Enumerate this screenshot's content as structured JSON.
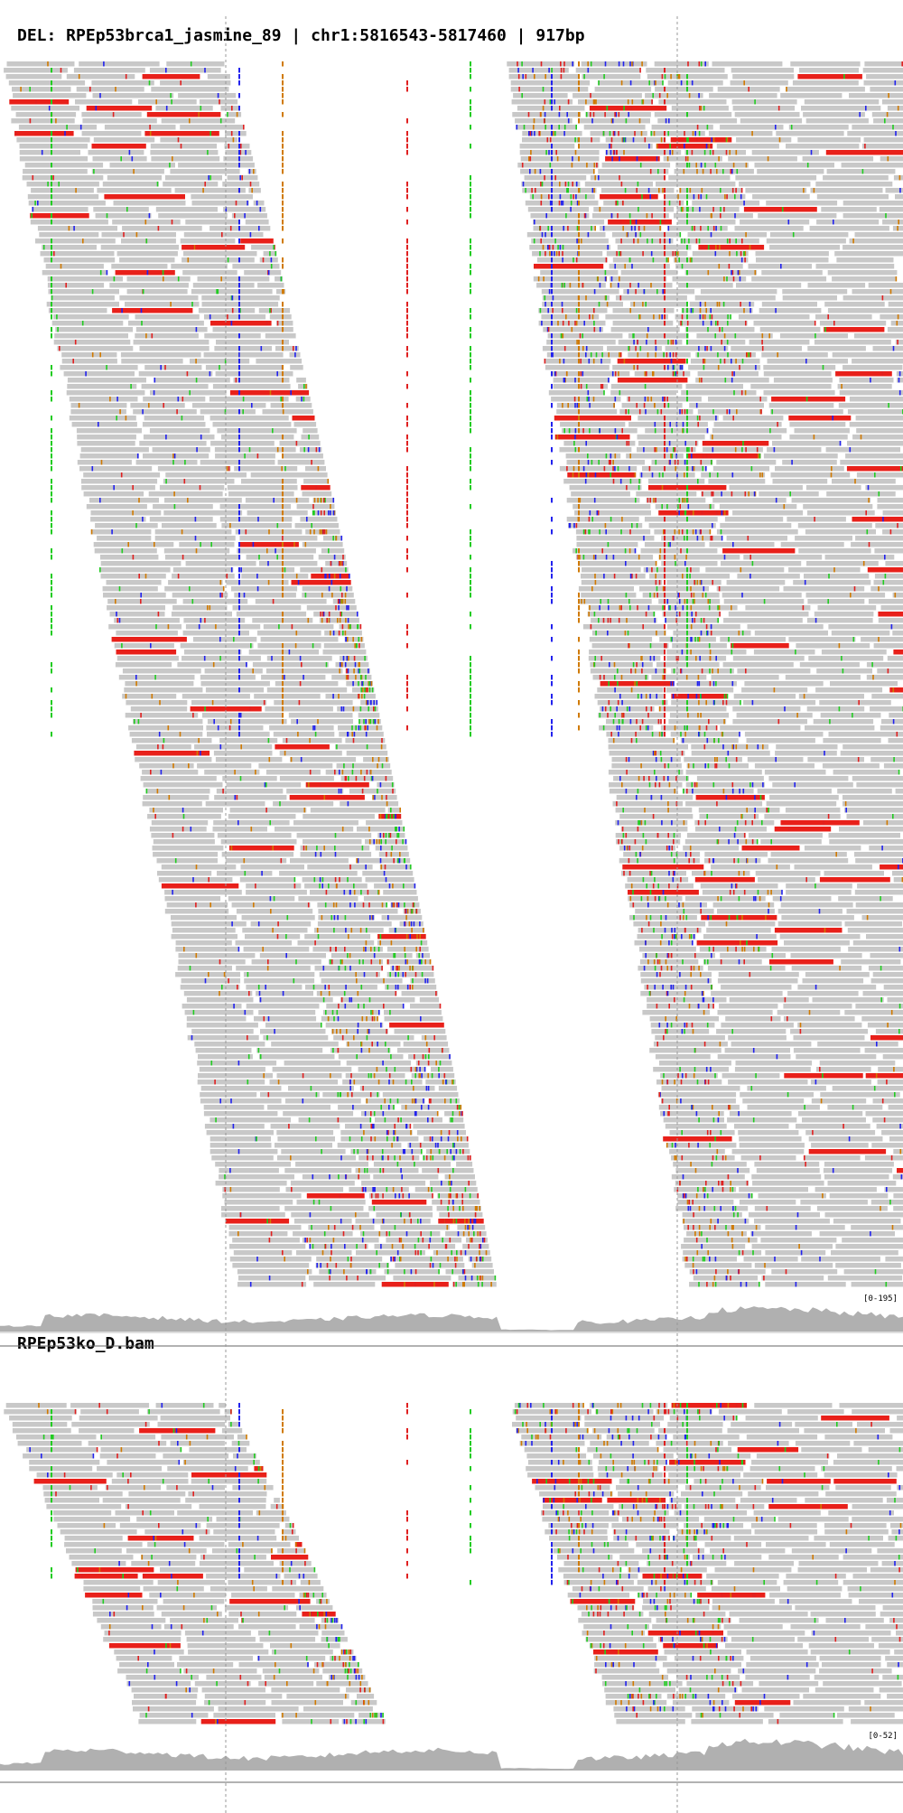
{
  "header": {
    "title": "DEL: RPEp53brca1_jasmine_89 | chr1:5816543-5817460 | 917bp"
  },
  "tracks": [
    {
      "name": "RPEp53brca1_jasmine_89",
      "coverage_range": "[0-195]"
    },
    {
      "name": "RPEp53ko_D.bam",
      "coverage_range": "[0-52]"
    }
  ],
  "colors": {
    "read": "#c8c8c8",
    "read_deletion": "#e8201a",
    "coverage": "#b0b0b0",
    "mismatch_A": "#22cc22",
    "mismatch_C": "#2222ee",
    "mismatch_G": "#d07a00",
    "mismatch_T": "#e02020",
    "insertion": "#6a1fd0",
    "breakpoint_line": "#999999"
  }
}
